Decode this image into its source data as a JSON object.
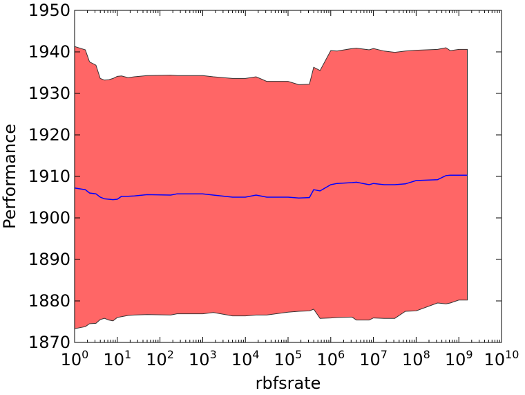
{
  "chart_data": {
    "type": "area",
    "title": "",
    "xlabel": "rbfsrate",
    "ylabel": "Performance",
    "x_scale": "log",
    "x_tick_exponents": [
      0,
      1,
      2,
      3,
      4,
      5,
      6,
      7,
      8,
      9,
      10
    ],
    "x_tick_base": "10",
    "xlim": [
      1,
      10000000000
    ],
    "ylim": [
      1870,
      1950
    ],
    "y_ticks": [
      1870,
      1880,
      1890,
      1900,
      1910,
      1920,
      1930,
      1940,
      1950
    ],
    "grid": false,
    "legend": "none",
    "band_color": "#ff6666",
    "line_color": "#0000ff",
    "band_edge_color": "#333333",
    "x": [
      1,
      1.78,
      2.24,
      3.16,
      3.98,
      5.01,
      6.31,
      7.94,
      10,
      12.6,
      17.8,
      25.1,
      50.1,
      178,
      251,
      1000,
      1780,
      5010,
      10000,
      17800,
      31600,
      100000,
      178000,
      316000,
      398000,
      562000,
      1000000,
      1410000,
      3160000,
      3980000,
      7940000,
      10000000,
      17800000,
      31600000,
      56200000,
      100000000,
      316000000,
      501000000,
      631000000,
      1000000000,
      1580000000
    ],
    "series": [
      {
        "name": "",
        "values": [
          1907.2,
          1906.8,
          1906.0,
          1905.8,
          1905.0,
          1904.6,
          1904.5,
          1904.4,
          1904.5,
          1905.2,
          1905.2,
          1905.3,
          1905.6,
          1905.5,
          1905.8,
          1905.8,
          1905.5,
          1905.0,
          1905.0,
          1905.5,
          1905.0,
          1905.0,
          1904.8,
          1904.9,
          1906.8,
          1906.5,
          1908.0,
          1908.3,
          1908.5,
          1908.6,
          1908.0,
          1908.3,
          1908.0,
          1908.0,
          1908.2,
          1909.0,
          1909.2,
          1910.2,
          1910.3,
          1910.3,
          1910.3
        ],
        "lower": [
          1873.3,
          1873.8,
          1874.5,
          1874.6,
          1875.5,
          1875.8,
          1875.4,
          1875.2,
          1876.0,
          1876.2,
          1876.5,
          1876.6,
          1876.7,
          1876.6,
          1876.9,
          1876.9,
          1877.2,
          1876.4,
          1876.4,
          1876.6,
          1876.6,
          1877.3,
          1877.5,
          1877.6,
          1878.0,
          1875.8,
          1875.9,
          1876.0,
          1876.1,
          1875.4,
          1875.4,
          1875.9,
          1875.8,
          1875.8,
          1877.5,
          1877.6,
          1879.5,
          1879.3,
          1879.5,
          1880.2,
          1880.2
        ],
        "upper": [
          1941.3,
          1940.5,
          1937.6,
          1936.8,
          1933.6,
          1933.2,
          1933.3,
          1933.6,
          1934.1,
          1934.2,
          1933.8,
          1934.0,
          1934.3,
          1934.4,
          1934.3,
          1934.3,
          1934.0,
          1933.6,
          1933.6,
          1934.0,
          1932.9,
          1932.9,
          1932.1,
          1932.2,
          1936.3,
          1935.5,
          1940.3,
          1940.2,
          1940.8,
          1940.9,
          1940.5,
          1940.8,
          1940.2,
          1939.9,
          1940.2,
          1940.4,
          1940.6,
          1941.0,
          1940.3,
          1940.6,
          1940.6
        ]
      }
    ]
  }
}
